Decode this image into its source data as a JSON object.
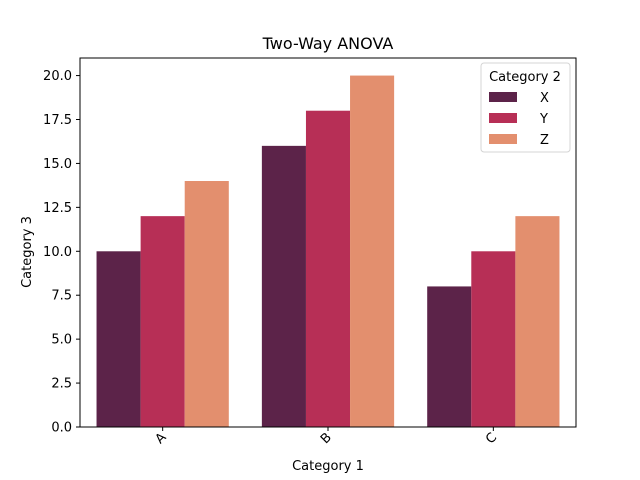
{
  "chart_data": {
    "type": "bar",
    "title": "Two-Way ANOVA",
    "xlabel": "Category 1",
    "ylabel": "Category 3",
    "categories": [
      "A",
      "B",
      "C"
    ],
    "series": [
      {
        "name": "X",
        "values": [
          10,
          16,
          8
        ],
        "color": "#5c2349"
      },
      {
        "name": "Y",
        "values": [
          12,
          18,
          10
        ],
        "color": "#b72f56"
      },
      {
        "name": "Z",
        "values": [
          14,
          20,
          12
        ],
        "color": "#e38f6e"
      }
    ],
    "ylim": [
      0,
      21
    ],
    "yticks": [
      0,
      2.5,
      5,
      7.5,
      10,
      12.5,
      15,
      17.5,
      20
    ],
    "ytick_labels": [
      "0.0",
      "2.5",
      "5.0",
      "7.5",
      "10.0",
      "12.5",
      "15.0",
      "17.5",
      "20.0"
    ],
    "legend": {
      "title": "Category 2",
      "placement": "top-right"
    },
    "grid": false
  }
}
